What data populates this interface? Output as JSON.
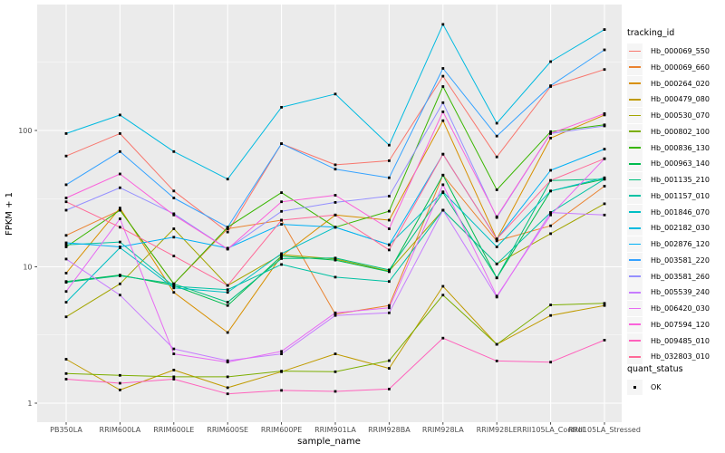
{
  "chart_data": {
    "type": "line",
    "xlabel": "sample_name",
    "ylabel": "FPKM + 1",
    "y_scale": "log10",
    "y_ticks": [
      1,
      10,
      100
    ],
    "y_tick_labels": [
      "1",
      "10",
      "100"
    ],
    "y_minor_breaks": [
      3.162,
      31.62,
      316.2
    ],
    "ylim": [
      0.74,
      815
    ],
    "grid": true,
    "panel_bg": "#EBEBEB",
    "grid_color": "#FFFFFF",
    "tick_label_color": "#4D4D4D",
    "point_color": "#000000",
    "legend_position": "right",
    "x_categories": [
      "PB350LA",
      "RRIM600LA",
      "RRIM600LE",
      "RRIM600SE",
      "RRIM600PE",
      "RRIM901LA",
      "RRIM928BA",
      "RRIM928LA",
      "RRIM928LE",
      "RRII105LA_Control",
      "RRII105LA_Stressed"
    ],
    "legend": {
      "tracking_title": "tracking_id",
      "quant_title": "quant_status",
      "quant_items": [
        {
          "label": "OK"
        }
      ]
    },
    "series": [
      {
        "name": "Hb_000069_550",
        "color": "#F8766D",
        "values": [
          65,
          95,
          36,
          18,
          80,
          56,
          60,
          250,
          64,
          210,
          280
        ]
      },
      {
        "name": "Hb_000069_660",
        "color": "#EA8331",
        "values": [
          17,
          26,
          7.5,
          19,
          22,
          4.5,
          5.2,
          47,
          15.5,
          20,
          39
        ]
      },
      {
        "name": "Hb_000264_020",
        "color": "#D89000",
        "values": [
          9,
          27,
          6.5,
          3.3,
          12,
          24,
          22,
          118,
          16,
          88,
          130
        ]
      },
      {
        "name": "Hb_000479_080",
        "color": "#C09B00",
        "values": [
          2.1,
          1.25,
          1.75,
          1.3,
          1.7,
          2.3,
          1.8,
          7.2,
          2.7,
          4.4,
          5.2
        ]
      },
      {
        "name": "Hb_000530_070",
        "color": "#A3A500",
        "values": [
          4.3,
          7.5,
          19,
          7.3,
          12.3,
          11.4,
          9.3,
          26,
          10.5,
          17.5,
          29
        ]
      },
      {
        "name": "Hb_000802_100",
        "color": "#7CAE00",
        "values": [
          1.65,
          1.6,
          1.56,
          1.56,
          1.72,
          1.7,
          2.05,
          6.2,
          2.7,
          5.25,
          5.4
        ]
      },
      {
        "name": "Hb_000836_130",
        "color": "#39B600",
        "values": [
          14,
          26,
          7.5,
          19.5,
          35,
          19.5,
          25.6,
          210,
          36.7,
          98,
          110
        ]
      },
      {
        "name": "Hb_000963_140",
        "color": "#00BB4E",
        "values": [
          7.8,
          8.7,
          7.3,
          5.2,
          12,
          11.2,
          9.2,
          47,
          8.3,
          36,
          44
        ]
      },
      {
        "name": "Hb_001135_210",
        "color": "#00BF7D",
        "values": [
          7.7,
          8.6,
          7.5,
          5.5,
          11.5,
          11.6,
          9.5,
          35,
          8.3,
          43,
          44
        ]
      },
      {
        "name": "Hb_001157_010",
        "color": "#00C1A3",
        "values": [
          14.5,
          15.2,
          7.2,
          6.8,
          10.4,
          8.4,
          7.8,
          26,
          10.5,
          25,
          44
        ]
      },
      {
        "name": "Hb_001846_070",
        "color": "#00BFC4",
        "values": [
          5.5,
          13.8,
          7.0,
          6.5,
          12.5,
          19.5,
          14.5,
          35.5,
          14,
          36,
          45
        ]
      },
      {
        "name": "Hb_002182_030",
        "color": "#00BAE0",
        "values": [
          95,
          130,
          70,
          44,
          148,
          185,
          78,
          600,
          113,
          320,
          550
        ]
      },
      {
        "name": "Hb_002876_120",
        "color": "#00B0F6",
        "values": [
          15,
          14,
          16.5,
          13.7,
          20.5,
          19.5,
          14.5,
          67,
          16,
          51,
          73
        ]
      },
      {
        "name": "Hb_003581_220",
        "color": "#35A2FF",
        "values": [
          40,
          70,
          32,
          19.5,
          80,
          52,
          45,
          285,
          91,
          213,
          390
        ]
      },
      {
        "name": "Hb_003581_260",
        "color": "#9590FF",
        "values": [
          26,
          38,
          24.5,
          13.5,
          25.5,
          29.7,
          33,
          160,
          23,
          95,
          108
        ]
      },
      {
        "name": "Hb_005539_240",
        "color": "#C77CFF",
        "values": [
          11.4,
          6.2,
          2.5,
          2.05,
          2.3,
          4.4,
          4.6,
          26,
          6.0,
          25,
          24
        ]
      },
      {
        "name": "Hb_006420_030",
        "color": "#E76BF3",
        "values": [
          6.6,
          22.5,
          2.3,
          2.0,
          2.4,
          4.6,
          5.0,
          40,
          6.1,
          24,
          62
        ]
      },
      {
        "name": "Hb_007594_120",
        "color": "#FA62DB",
        "values": [
          32,
          48,
          24,
          13.5,
          30,
          33.5,
          19,
          137,
          23.3,
          95,
          133
        ]
      },
      {
        "name": "Hb_009485_010",
        "color": "#FF62BC",
        "values": [
          1.5,
          1.4,
          1.5,
          1.17,
          1.24,
          1.22,
          1.27,
          3.0,
          2.04,
          2.0,
          2.9
        ]
      },
      {
        "name": "Hb_032803_010",
        "color": "#FF6A98",
        "values": [
          30,
          19.5,
          12,
          7.3,
          22,
          24,
          13.3,
          67,
          16,
          43,
          62
        ]
      }
    ]
  }
}
